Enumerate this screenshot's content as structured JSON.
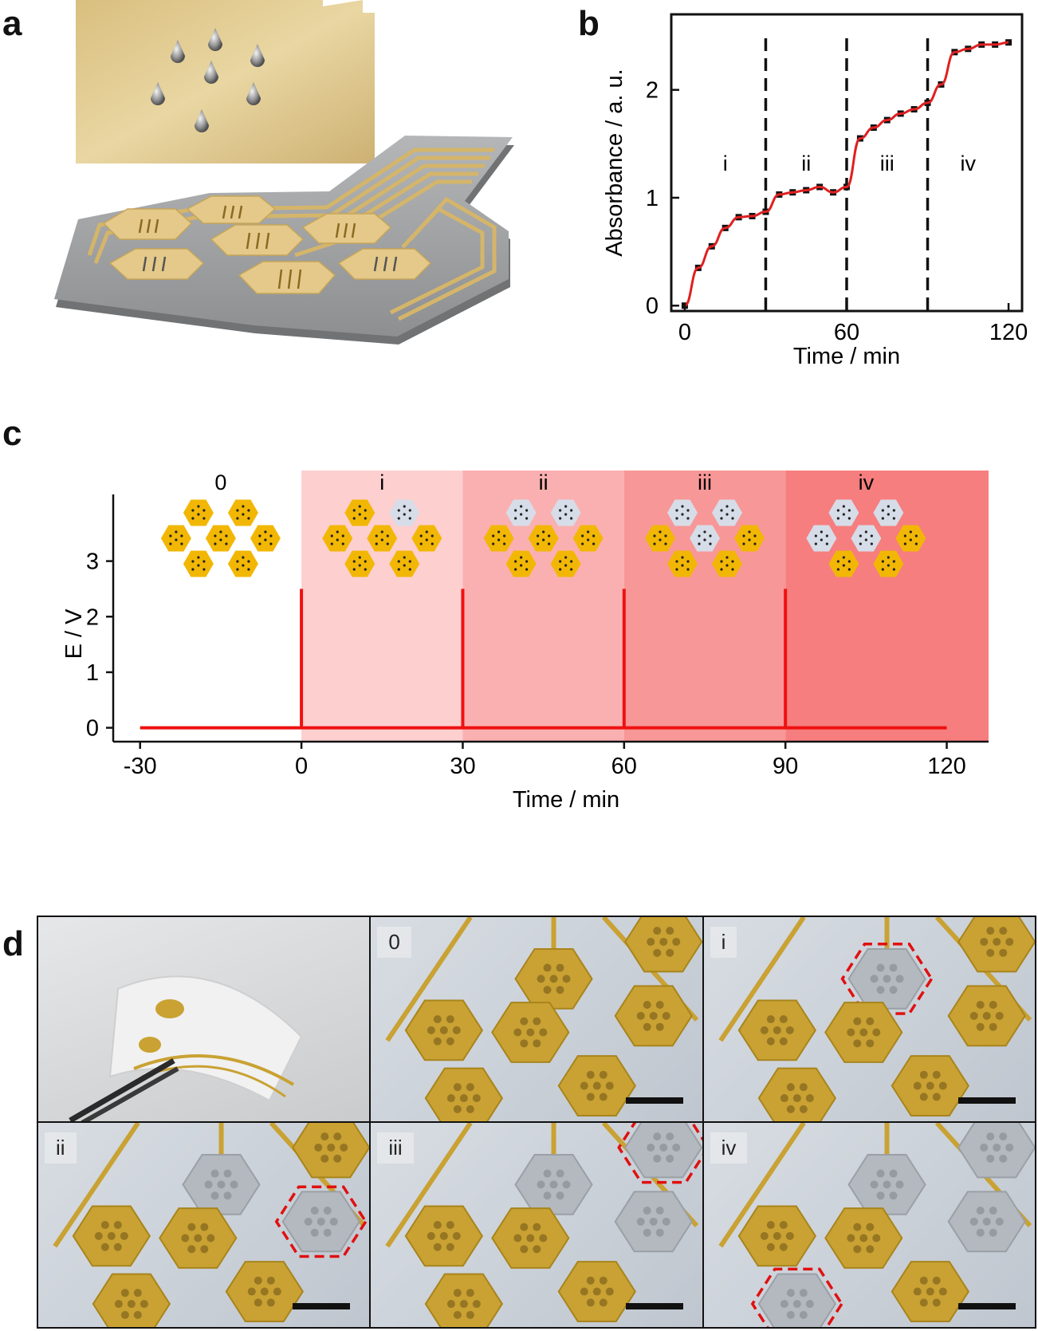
{
  "panels": {
    "a": "a",
    "b": "b",
    "c": "c",
    "d": "d"
  },
  "chart_b": {
    "type": "scatter",
    "xlabel": "Time / min",
    "ylabel": "Absorbance / a. u.",
    "xticks": [
      "0",
      "60",
      "120"
    ],
    "yticks": [
      "0",
      "1",
      "2"
    ],
    "stage_labels": [
      "i",
      "ii",
      "iii",
      "iv"
    ],
    "fit_color": "#e02020",
    "points_color": "#111111"
  },
  "chart_c": {
    "type": "line",
    "xlabel": "Time / min",
    "ylabel": "E / V",
    "xticks": [
      "-30",
      "0",
      "30",
      "60",
      "90",
      "120"
    ],
    "yticks": [
      "0",
      "1",
      "2",
      "3"
    ],
    "stage_labels": [
      "0",
      "i",
      "ii",
      "iii",
      "iv"
    ],
    "line_color": "#ee1111",
    "band_colors": [
      "#fdcfcf",
      "#fab0b0",
      "#f89797",
      "#f67e7e"
    ],
    "active_color": "#f2b705",
    "dissolved_color": "#d6dde8"
  },
  "photos": {
    "labels": [
      "0",
      "i",
      "ii",
      "iii",
      "iv"
    ]
  },
  "chart_data": [
    {
      "type": "scatter",
      "xlabel": "Time / min",
      "ylabel": "Absorbance / a. u.",
      "xlim": [
        -5,
        125
      ],
      "ylim": [
        -0.05,
        2.7
      ],
      "stages": [
        {
          "name": "i",
          "range": [
            0,
            30
          ]
        },
        {
          "name": "ii",
          "range": [
            30,
            60
          ]
        },
        {
          "name": "iii",
          "range": [
            60,
            90
          ]
        },
        {
          "name": "iv",
          "range": [
            90,
            120
          ]
        }
      ],
      "stage_boundaries": [
        30,
        60,
        90
      ],
      "series": [
        {
          "x": [
            0,
            5,
            10,
            15,
            20,
            25,
            30,
            35,
            40,
            45,
            50,
            55,
            60,
            65,
            70,
            75,
            80,
            85,
            90,
            95,
            100,
            105,
            110,
            115,
            120
          ],
          "y": [
            0.0,
            0.35,
            0.55,
            0.72,
            0.82,
            0.83,
            0.87,
            1.03,
            1.05,
            1.07,
            1.1,
            1.05,
            1.1,
            1.55,
            1.65,
            1.72,
            1.78,
            1.82,
            1.88,
            2.05,
            2.35,
            2.38,
            2.42,
            2.42,
            2.44
          ]
        }
      ]
    },
    {
      "type": "line",
      "xlabel": "Time / min",
      "ylabel": "E / V",
      "xlim": [
        -35,
        130
      ],
      "ylim": [
        -0.25,
        4.2
      ],
      "stages": [
        {
          "name": "0",
          "range": [
            -30,
            0
          ],
          "dissolved": 0
        },
        {
          "name": "i",
          "range": [
            0,
            30
          ],
          "dissolved": 1
        },
        {
          "name": "ii",
          "range": [
            30,
            60
          ],
          "dissolved": 2
        },
        {
          "name": "iii",
          "range": [
            60,
            90
          ],
          "dissolved": 3
        },
        {
          "name": "iv",
          "range": [
            90,
            130
          ],
          "dissolved": 4
        }
      ],
      "series": [
        {
          "x": [
            -30,
            0,
            0,
            0,
            30,
            30,
            30,
            60,
            60,
            60,
            90,
            90,
            90,
            120
          ],
          "y": [
            0,
            0,
            2.5,
            0,
            0,
            2.5,
            0,
            0,
            2.5,
            0,
            0,
            2.5,
            0,
            0
          ]
        }
      ]
    }
  ]
}
